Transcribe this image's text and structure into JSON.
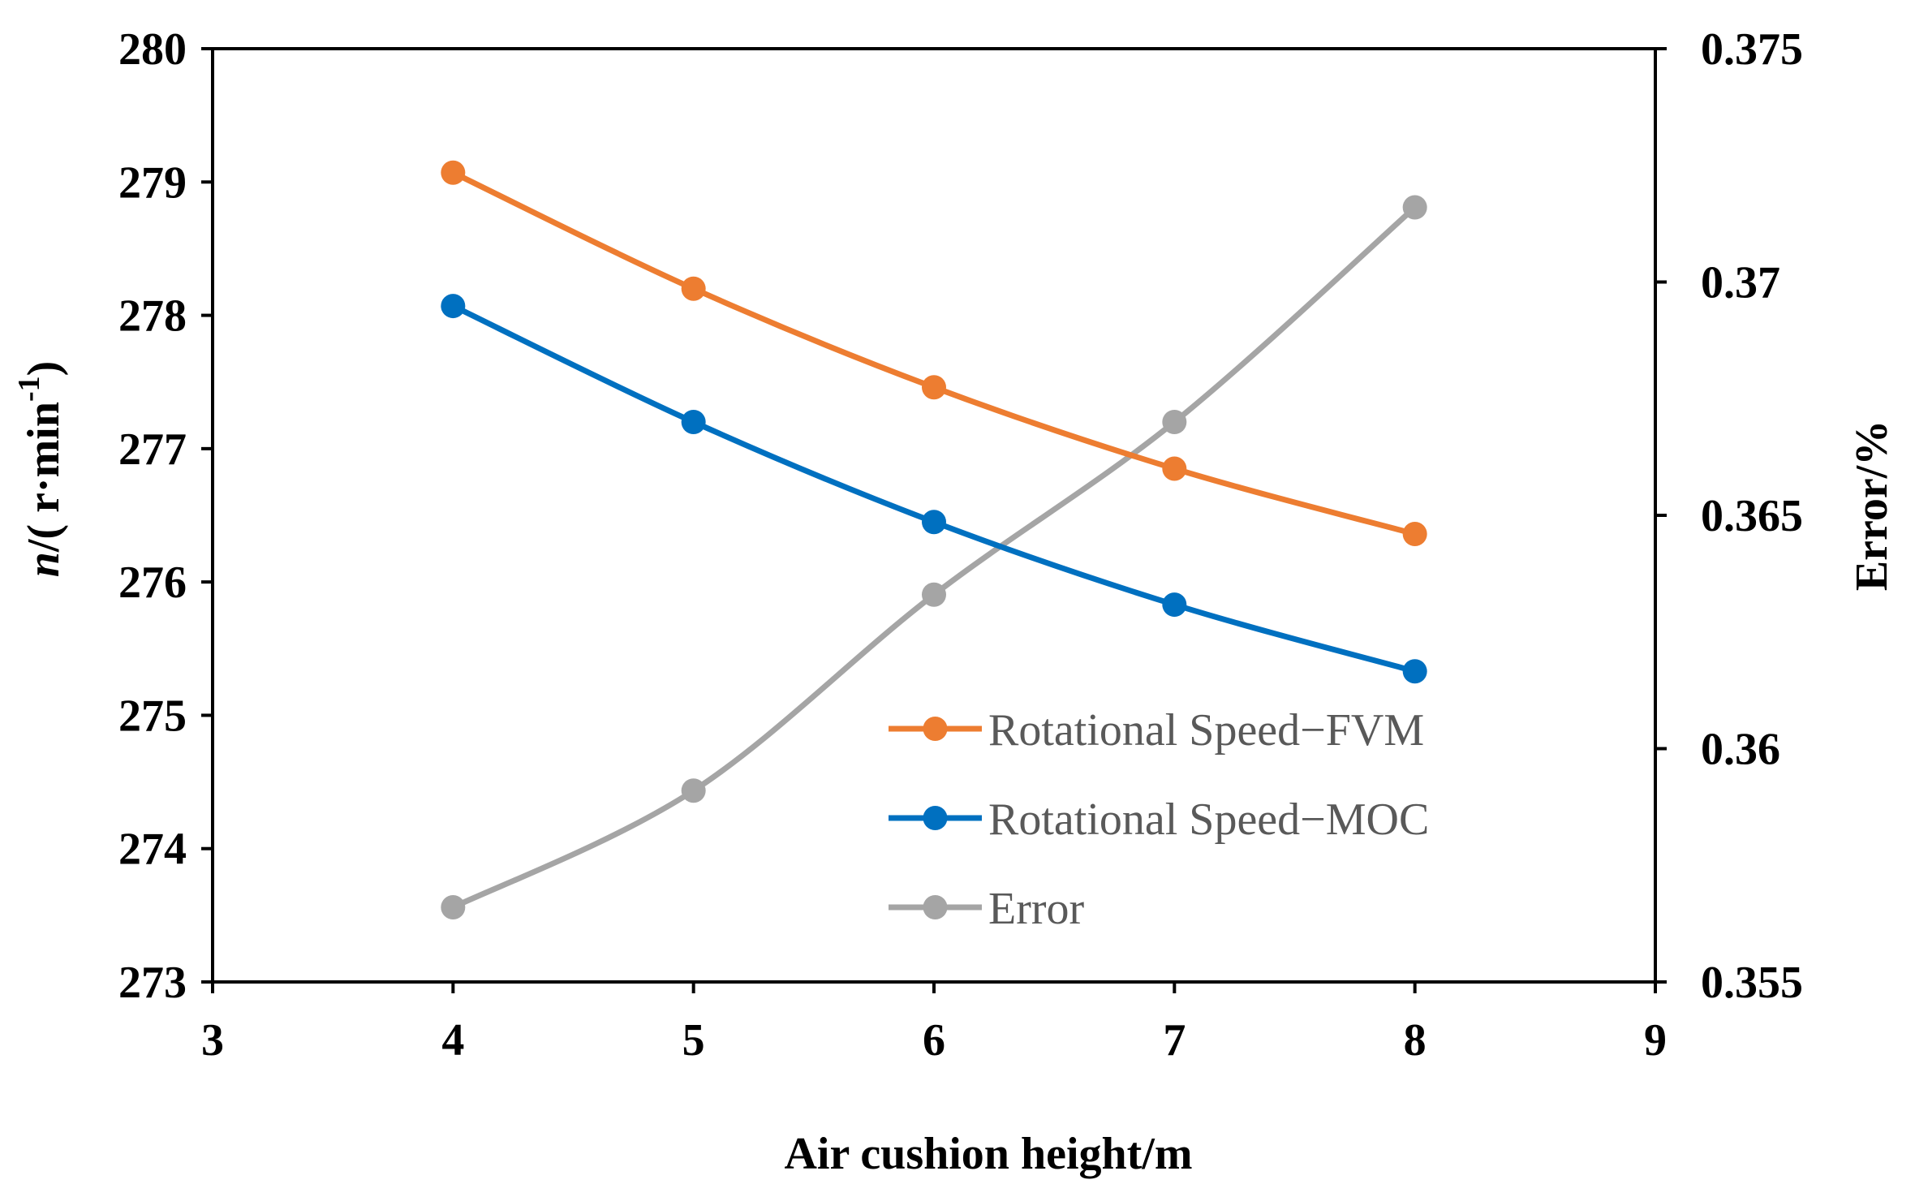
{
  "chart_data": {
    "type": "line",
    "x": [
      4,
      5,
      6,
      7,
      8
    ],
    "xlabel": "Air cushion height/m",
    "xlim": [
      3,
      9
    ],
    "xticks": [
      3,
      4,
      5,
      6,
      7,
      8,
      9
    ],
    "ylabel_left": "n/( r·min-1)",
    "ylabel_left_italic": "n",
    "ylabel_left_rest": "/( r·min",
    "ylabel_left_sup": "-1",
    "ylabel_left_close": ")",
    "ylim_left": [
      273,
      280
    ],
    "yticks_left": [
      273,
      274,
      275,
      276,
      277,
      278,
      279,
      280
    ],
    "ylabel_right": "Error/%",
    "ylim_right": [
      0.355,
      0.375
    ],
    "yticks_right": [
      "0.355",
      "0.36",
      "0.365",
      "0.37",
      "0.375"
    ],
    "ytick_values_right": [
      0.355,
      0.36,
      0.365,
      0.37,
      0.375
    ],
    "legend_position": "bottom-right",
    "series": [
      {
        "name": "Rotational Speed−FVM",
        "axis": "left",
        "color": "#ED7D31",
        "values": [
          279.07,
          278.2,
          277.46,
          276.85,
          276.36
        ]
      },
      {
        "name": "Rotational Speed−MOC",
        "axis": "left",
        "color": "#0070C0",
        "values": [
          278.07,
          277.2,
          276.45,
          275.83,
          275.33
        ]
      },
      {
        "name": "Error",
        "axis": "right",
        "color": "#A5A5A5",
        "values": [
          0.3566,
          0.3591,
          0.3633,
          0.367,
          0.3716
        ]
      }
    ]
  }
}
